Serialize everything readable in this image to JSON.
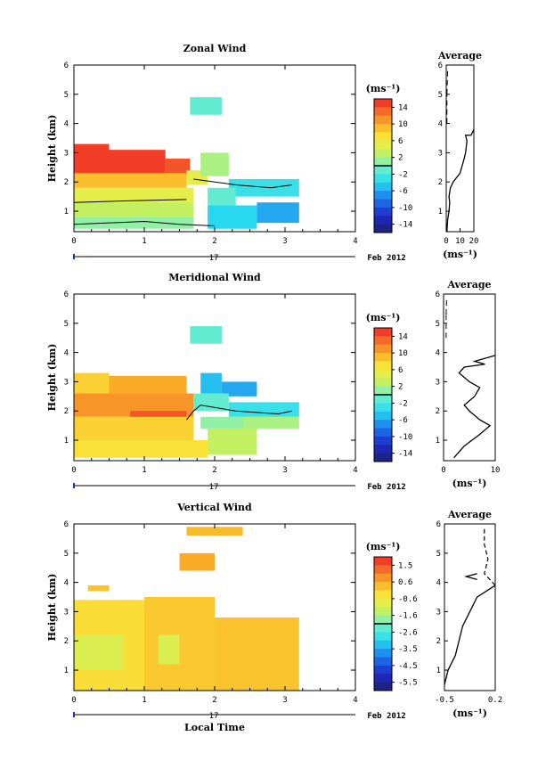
{
  "chart_data": [
    {
      "type": "heatmap",
      "title": "Zonal Wind",
      "ylabel": "Height (km)",
      "xlabel": "",
      "xlim": [
        0,
        4
      ],
      "ylim": [
        0.3,
        6
      ],
      "xticks": [
        "0",
        "1",
        "2",
        "3",
        "4"
      ],
      "yticks": [
        "1",
        "2",
        "3",
        "4",
        "5",
        "6"
      ],
      "date_day": "17",
      "date_label": "Feb 2012",
      "colorbar": {
        "unit": "(ms⁻¹)",
        "min": -16,
        "max": 16,
        "ticks": [
          "14",
          "10",
          "6",
          "2",
          "-2",
          "-6",
          "-10",
          "-14"
        ]
      },
      "fields": [
        {
          "x0": 0,
          "x1": 0.5,
          "y0": 2.1,
          "y1": 3.3,
          "v": 15
        },
        {
          "x0": 0.5,
          "x1": 1.3,
          "y0": 2.2,
          "y1": 3.1,
          "v": 15
        },
        {
          "x0": 1.3,
          "x1": 1.65,
          "y0": 2.2,
          "y1": 2.8,
          "v": 14
        },
        {
          "x0": 0,
          "x1": 1.6,
          "y0": 1.8,
          "y1": 2.3,
          "v": 9
        },
        {
          "x0": 1.6,
          "x1": 1.9,
          "y0": 1.9,
          "y1": 2.4,
          "v": 5
        },
        {
          "x0": 0,
          "x1": 1.7,
          "y0": 1.3,
          "y1": 1.8,
          "v": 5
        },
        {
          "x0": 0,
          "x1": 1.7,
          "y0": 0.8,
          "y1": 1.3,
          "v": 3
        },
        {
          "x0": 0,
          "x1": 1.7,
          "y0": 0.4,
          "y1": 0.8,
          "v": 1
        },
        {
          "x0": 1.8,
          "x1": 2.2,
          "y0": 2.2,
          "y1": 3.0,
          "v": 2
        },
        {
          "x0": 2.2,
          "x1": 3.2,
          "y0": 1.5,
          "y1": 2.1,
          "v": -3
        },
        {
          "x0": 1.9,
          "x1": 2.3,
          "y0": 1.2,
          "y1": 1.8,
          "v": -1
        },
        {
          "x0": 1.9,
          "x1": 2.6,
          "y0": 0.4,
          "y1": 1.2,
          "v": -4
        },
        {
          "x0": 2.6,
          "x1": 3.2,
          "y0": 0.6,
          "y1": 1.3,
          "v": -6
        },
        {
          "x0": 1.65,
          "x1": 2.1,
          "y0": 4.3,
          "y1": 4.9,
          "v": -1
        }
      ],
      "contours": [
        [
          [
            0,
            0.55
          ],
          [
            0.5,
            0.6
          ],
          [
            1.0,
            0.65
          ],
          [
            1.5,
            0.55
          ],
          [
            2.0,
            0.5
          ]
        ],
        [
          [
            0,
            1.3
          ],
          [
            0.7,
            1.35
          ],
          [
            1.6,
            1.4
          ]
        ],
        [
          [
            1.7,
            2.1
          ],
          [
            2.3,
            1.9
          ],
          [
            2.8,
            1.8
          ],
          [
            3.1,
            1.9
          ]
        ]
      ],
      "average": {
        "title": "Average",
        "xlabel": "(ms⁻¹)",
        "xlim": [
          0,
          20
        ],
        "xticks": [
          "0",
          "10",
          "20"
        ],
        "yticks": [
          "1",
          "2",
          "3",
          "4",
          "5",
          "6"
        ],
        "ylim": [
          0.3,
          6
        ],
        "profile": [
          [
            0.5,
            0.3
          ],
          [
            1,
            0.7
          ],
          [
            2,
            1.0
          ],
          [
            2.5,
            1.3
          ],
          [
            2,
            1.5
          ],
          [
            3,
            1.8
          ],
          [
            5,
            2.0
          ],
          [
            10,
            2.3
          ],
          [
            13,
            2.8
          ],
          [
            14,
            3.0
          ],
          [
            15,
            3.4
          ],
          [
            14,
            3.6
          ],
          [
            18,
            3.6
          ],
          [
            20,
            3.8
          ]
        ],
        "sparse": [
          [
            0.5,
            4.0
          ],
          [
            0.5,
            5.0
          ],
          [
            1,
            5.8
          ]
        ]
      }
    },
    {
      "type": "heatmap",
      "title": "Meridional Wind",
      "ylabel": "Height (km)",
      "xlabel": "",
      "xlim": [
        0,
        4
      ],
      "ylim": [
        0.3,
        6
      ],
      "xticks": [
        "0",
        "1",
        "2",
        "3",
        "4"
      ],
      "yticks": [
        "1",
        "2",
        "3",
        "4",
        "5",
        "6"
      ],
      "date_day": "17",
      "date_label": "Feb 2012",
      "colorbar": {
        "unit": "(ms⁻¹)",
        "min": -16,
        "max": 16,
        "ticks": [
          "14",
          "10",
          "6",
          "2",
          "-2",
          "-6",
          "-10",
          "-14"
        ]
      },
      "fields": [
        {
          "x0": 0,
          "x1": 0.5,
          "y0": 2.6,
          "y1": 3.3,
          "v": 8
        },
        {
          "x0": 0.5,
          "x1": 1.6,
          "y0": 2.6,
          "y1": 3.2,
          "v": 10
        },
        {
          "x0": 0,
          "x1": 1.7,
          "y0": 1.8,
          "y1": 2.6,
          "v": 11
        },
        {
          "x0": 0.8,
          "x1": 1.6,
          "y0": 1.5,
          "y1": 2.0,
          "v": 14
        },
        {
          "x0": 0,
          "x1": 1.7,
          "y0": 1.0,
          "y1": 1.8,
          "v": 8
        },
        {
          "x0": 0,
          "x1": 1.9,
          "y0": 0.4,
          "y1": 1.0,
          "v": 7
        },
        {
          "x0": 1.8,
          "x1": 2.1,
          "y0": 2.6,
          "y1": 3.3,
          "v": -5
        },
        {
          "x0": 2.1,
          "x1": 2.6,
          "y0": 2.5,
          "y1": 3.0,
          "v": -6
        },
        {
          "x0": 1.7,
          "x1": 2.2,
          "y0": 2.0,
          "y1": 2.6,
          "v": -1
        },
        {
          "x0": 2.2,
          "x1": 3.2,
          "y0": 1.8,
          "y1": 2.3,
          "v": -3
        },
        {
          "x0": 1.8,
          "x1": 2.6,
          "y0": 1.4,
          "y1": 1.8,
          "v": 1
        },
        {
          "x0": 2.4,
          "x1": 3.2,
          "y0": 1.4,
          "y1": 1.8,
          "v": 2
        },
        {
          "x0": 1.9,
          "x1": 2.6,
          "y0": 0.5,
          "y1": 1.4,
          "v": 3
        },
        {
          "x0": 1.65,
          "x1": 2.1,
          "y0": 4.3,
          "y1": 4.9,
          "v": -1
        }
      ],
      "contours": [
        [
          [
            1.6,
            1.7
          ],
          [
            1.7,
            2.0
          ],
          [
            1.8,
            2.2
          ],
          [
            2.3,
            2.0
          ],
          [
            2.9,
            1.9
          ],
          [
            3.1,
            2.0
          ]
        ]
      ],
      "average": {
        "title": "Average",
        "xlabel": "(ms⁻¹)",
        "xlim": [
          0,
          10
        ],
        "xticks": [
          "0",
          "10"
        ],
        "yticks": [
          "1",
          "2",
          "3",
          "4",
          "5",
          "6"
        ],
        "ylim": [
          0.3,
          6
        ],
        "profile": [
          [
            2,
            0.4
          ],
          [
            4,
            0.8
          ],
          [
            7,
            1.2
          ],
          [
            9,
            1.5
          ],
          [
            7,
            1.7
          ],
          [
            5,
            2.0
          ],
          [
            4,
            2.2
          ],
          [
            6,
            2.5
          ],
          [
            7,
            2.8
          ],
          [
            5,
            3.0
          ],
          [
            3,
            3.3
          ],
          [
            4,
            3.5
          ],
          [
            8,
            3.6
          ],
          [
            6,
            3.7
          ],
          [
            10,
            3.9
          ]
        ],
        "sparse": [
          [
            0.5,
            4.5
          ],
          [
            0.5,
            5.3
          ],
          [
            0.6,
            5.9
          ]
        ]
      }
    },
    {
      "type": "heatmap",
      "title": "Vertical Wind",
      "ylabel": "Height (km)",
      "xlabel": "Local Time",
      "xlim": [
        0,
        4
      ],
      "ylim": [
        0.3,
        6
      ],
      "xticks": [
        "0",
        "1",
        "2",
        "3",
        "4"
      ],
      "yticks": [
        "1",
        "2",
        "3",
        "4",
        "5",
        "6"
      ],
      "date_day": "17",
      "date_label": "Feb 2012",
      "colorbar": {
        "unit": "(ms⁻¹)",
        "min": -6,
        "max": 2,
        "ticks": [
          "1.5",
          "0.6",
          "-0.6",
          "-1.6",
          "-2.6",
          "-3.5",
          "-4.5",
          "-5.5"
        ]
      },
      "fields": [
        {
          "x0": 0,
          "x1": 1.0,
          "y0": 0.3,
          "y1": 3.4,
          "v": -0.2
        },
        {
          "x0": 1.0,
          "x1": 2.0,
          "y0": 0.3,
          "y1": 3.5,
          "v": 0.1
        },
        {
          "x0": 2.0,
          "x1": 3.2,
          "y0": 0.3,
          "y1": 2.8,
          "v": 0.2
        },
        {
          "x0": 0,
          "x1": 0.7,
          "y0": 1.0,
          "y1": 2.2,
          "v": -0.9
        },
        {
          "x0": 1.2,
          "x1": 1.5,
          "y0": 1.2,
          "y1": 2.2,
          "v": -0.9
        },
        {
          "x0": 0.2,
          "x1": 0.5,
          "y0": 3.7,
          "y1": 3.9,
          "v": 0.2
        },
        {
          "x0": 1.6,
          "x1": 2.4,
          "y0": 5.6,
          "y1": 5.9,
          "v": 0.3
        },
        {
          "x0": 1.5,
          "x1": 2.0,
          "y0": 4.4,
          "y1": 5.0,
          "v": 0.5
        }
      ],
      "contours": [],
      "average": {
        "title": "Average",
        "xlabel": "(ms⁻¹)",
        "xlim": [
          -0.5,
          0.2
        ],
        "xticks": [
          "-0.5",
          "0.2"
        ],
        "yticks": [
          "1",
          "2",
          "3",
          "4",
          "5",
          "6"
        ],
        "ylim": [
          0.3,
          6
        ],
        "profile": [
          [
            -0.5,
            0.5
          ],
          [
            -0.45,
            1.0
          ],
          [
            -0.35,
            1.5
          ],
          [
            -0.3,
            2.0
          ],
          [
            -0.25,
            2.5
          ],
          [
            -0.15,
            3.0
          ],
          [
            -0.05,
            3.5
          ],
          [
            0.2,
            3.9
          ]
        ],
        "dashed": [
          [
            0.2,
            3.9
          ],
          [
            0.05,
            4.3
          ],
          [
            0.1,
            4.8
          ],
          [
            0.05,
            5.3
          ],
          [
            0.05,
            5.9
          ]
        ],
        "spike": [
          [
            -0.05,
            4.1
          ],
          [
            -0.2,
            4.2
          ],
          [
            -0.05,
            4.3
          ]
        ]
      }
    }
  ]
}
